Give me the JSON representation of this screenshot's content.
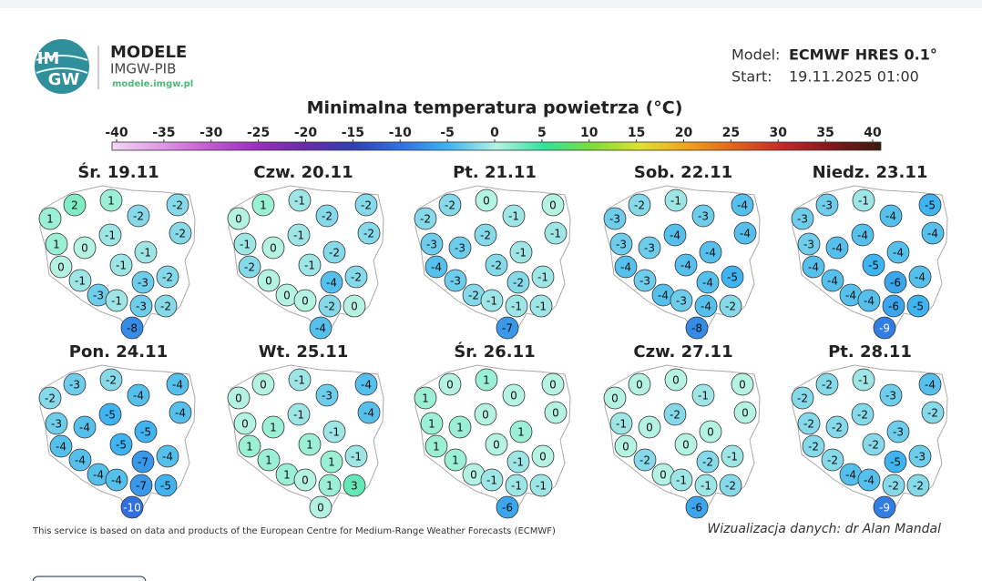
{
  "header": {
    "logo_top": "IM",
    "logo_bottom": "GW",
    "brand": "MODELE",
    "org": "IMGW-PIB",
    "url": "modele.imgw.pl"
  },
  "info": {
    "model_label": "Model:",
    "model_value": "ECMWF HRES 0.1°",
    "start_label": "Start:",
    "start_value": "19.11.2025 01:00"
  },
  "colorbar": {
    "title": "Minimalna temperatura powietrza (°C)",
    "ticks": [
      -40,
      -35,
      -30,
      -25,
      -20,
      -15,
      -10,
      -5,
      0,
      5,
      10,
      15,
      20,
      25,
      30,
      35,
      40
    ],
    "colors": [
      "#f2d7f2",
      "#e09ae6",
      "#c45ad0",
      "#9a30c0",
      "#6a2aa8",
      "#3040b0",
      "#2f6fe0",
      "#3fb4f0",
      "#b4f2e2",
      "#30e29a",
      "#7fdc3a",
      "#e0e030",
      "#f0a020",
      "#e0601a",
      "#c02828",
      "#801818",
      "#3a1a10"
    ]
  },
  "maps": [
    {
      "title": "Śr. 19.11",
      "values": [
        1,
        2,
        1,
        -2,
        -2,
        -2,
        -1,
        1,
        0,
        -1,
        0,
        -1,
        -1,
        -3,
        -2,
        -3,
        -1,
        -3,
        -2,
        -8
      ]
    },
    {
      "title": "Czw. 20.11",
      "values": [
        0,
        1,
        -1,
        -2,
        -2,
        -2,
        -1,
        -1,
        0,
        -2,
        -2,
        -1,
        0,
        -4,
        -2,
        0,
        0,
        -2,
        0,
        -4
      ]
    },
    {
      "title": "Pt. 21.11",
      "values": [
        -2,
        -2,
        0,
        0,
        -1,
        -1,
        -2,
        -3,
        -3,
        -1,
        -4,
        -2,
        -3,
        -2,
        -1,
        -2,
        -1,
        -1,
        -1,
        -7
      ]
    },
    {
      "title": "Sob. 22.11",
      "values": [
        -3,
        -2,
        -1,
        -4,
        -3,
        -4,
        -4,
        -3,
        -3,
        -4,
        -4,
        -4,
        -3,
        -4,
        -5,
        -4,
        -3,
        -4,
        -2,
        -8
      ]
    },
    {
      "title": "Niedz. 23.11",
      "values": [
        -3,
        -3,
        -1,
        -5,
        -4,
        -4,
        -4,
        -3,
        -4,
        -4,
        -4,
        -5,
        -4,
        -6,
        -4,
        -4,
        -4,
        -6,
        -5,
        -9
      ]
    },
    {
      "title": "Pon. 24.11",
      "values": [
        -2,
        -3,
        -2,
        -4,
        -4,
        -4,
        -5,
        -3,
        -4,
        -5,
        -4,
        -5,
        -4,
        -7,
        -4,
        -4,
        -4,
        -7,
        -5,
        -10
      ]
    },
    {
      "title": "Wt. 25.11",
      "values": [
        0,
        0,
        -1,
        -4,
        -3,
        -4,
        -1,
        0,
        1,
        -1,
        1,
        1,
        1,
        1,
        -1,
        1,
        0,
        1,
        3,
        0
      ]
    },
    {
      "title": "Śr. 26.11",
      "values": [
        1,
        0,
        1,
        0,
        0,
        0,
        0,
        1,
        1,
        1,
        1,
        0,
        1,
        -1,
        0,
        0,
        -1,
        -1,
        -1,
        -6
      ]
    },
    {
      "title": "Czw. 27.11",
      "values": [
        0,
        0,
        0,
        0,
        -1,
        0,
        -2,
        -1,
        0,
        0,
        0,
        0,
        -2,
        -2,
        -1,
        0,
        -1,
        -1,
        -2,
        -6
      ]
    },
    {
      "title": "Pt. 28.11",
      "values": [
        -2,
        -2,
        -1,
        -4,
        -3,
        -2,
        -2,
        -2,
        -2,
        -3,
        -2,
        -2,
        -2,
        -5,
        -3,
        -4,
        -4,
        -2,
        -2,
        -9
      ]
    }
  ],
  "footer": {
    "credit": "This service is based on data and products of the European Centre for Medium-Range Weather Forecasts (ECMWF)",
    "visualization": "Wizualizacja danych: dr Alan Mandal"
  }
}
